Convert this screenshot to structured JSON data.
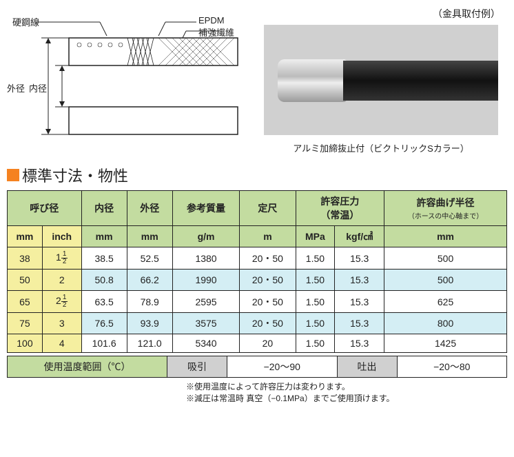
{
  "diagram": {
    "labels": {
      "hardSteel": "硬鋼線",
      "epdm": "EPDM",
      "reinforceFiber": "補強繊維",
      "outerDia": "外径",
      "innerDia": "内径"
    }
  },
  "photo": {
    "topCaption": "（金具取付例）",
    "bottomCaption": "アルミ加締抜止付（ビクトリックSカラー）"
  },
  "sectionTitle": "標準寸法・物性",
  "table": {
    "headers": {
      "nominal": "呼び径",
      "innerDia": "内径",
      "outerDia": "外径",
      "mass": "参考質量",
      "length": "定尺",
      "pressure": "許容圧力",
      "pressureSub": "（常温）",
      "bendRadius": "許容曲げ半径",
      "bendRadiusSub": "（ホースの中心軸まで）",
      "mmUnit": "mm",
      "inchUnit": "inch",
      "gmUnit": "g/m",
      "mUnit": "m",
      "mpaUnit": "MPa",
      "kgfUnit": "kgf/㎠"
    },
    "rows": [
      {
        "mm": "38",
        "inch_whole": "1",
        "inch_n": "1",
        "inch_d": "2",
        "id": "38.5",
        "od": "52.5",
        "mass": "1380",
        "len": "20・50",
        "mpa": "1.50",
        "kgf": "15.3",
        "bend": "500",
        "blue": false
      },
      {
        "mm": "50",
        "inch_whole": "2",
        "inch_n": "",
        "inch_d": "",
        "id": "50.8",
        "od": "66.2",
        "mass": "1990",
        "len": "20・50",
        "mpa": "1.50",
        "kgf": "15.3",
        "bend": "500",
        "blue": true
      },
      {
        "mm": "65",
        "inch_whole": "2",
        "inch_n": "1",
        "inch_d": "2",
        "id": "63.5",
        "od": "78.9",
        "mass": "2595",
        "len": "20・50",
        "mpa": "1.50",
        "kgf": "15.3",
        "bend": "625",
        "blue": false
      },
      {
        "mm": "75",
        "inch_whole": "3",
        "inch_n": "",
        "inch_d": "",
        "id": "76.5",
        "od": "93.9",
        "mass": "3575",
        "len": "20・50",
        "mpa": "1.50",
        "kgf": "15.3",
        "bend": "800",
        "blue": true
      },
      {
        "mm": "100",
        "inch_whole": "4",
        "inch_n": "",
        "inch_d": "",
        "id": "101.6",
        "od": "121.0",
        "mass": "5340",
        "len": "20",
        "mpa": "1.50",
        "kgf": "15.3",
        "bend": "1425",
        "blue": false
      }
    ]
  },
  "tempRow": {
    "label": "使用温度範囲（℃）",
    "suction": "吸引",
    "suctionRange": "−20〜90",
    "discharge": "吐出",
    "dischargeRange": "−20〜80"
  },
  "footnotes": {
    "n1": "※使用温度によって許容圧力は変わります。",
    "n2": "※減圧は常温時 真空（−0.1MPa）までご使用頂けます。"
  },
  "colors": {
    "green": "#c3dca0",
    "yellow": "#f5efa0",
    "blue": "#d4eef4",
    "orange": "#f58220",
    "gray": "#d0d0d0"
  }
}
